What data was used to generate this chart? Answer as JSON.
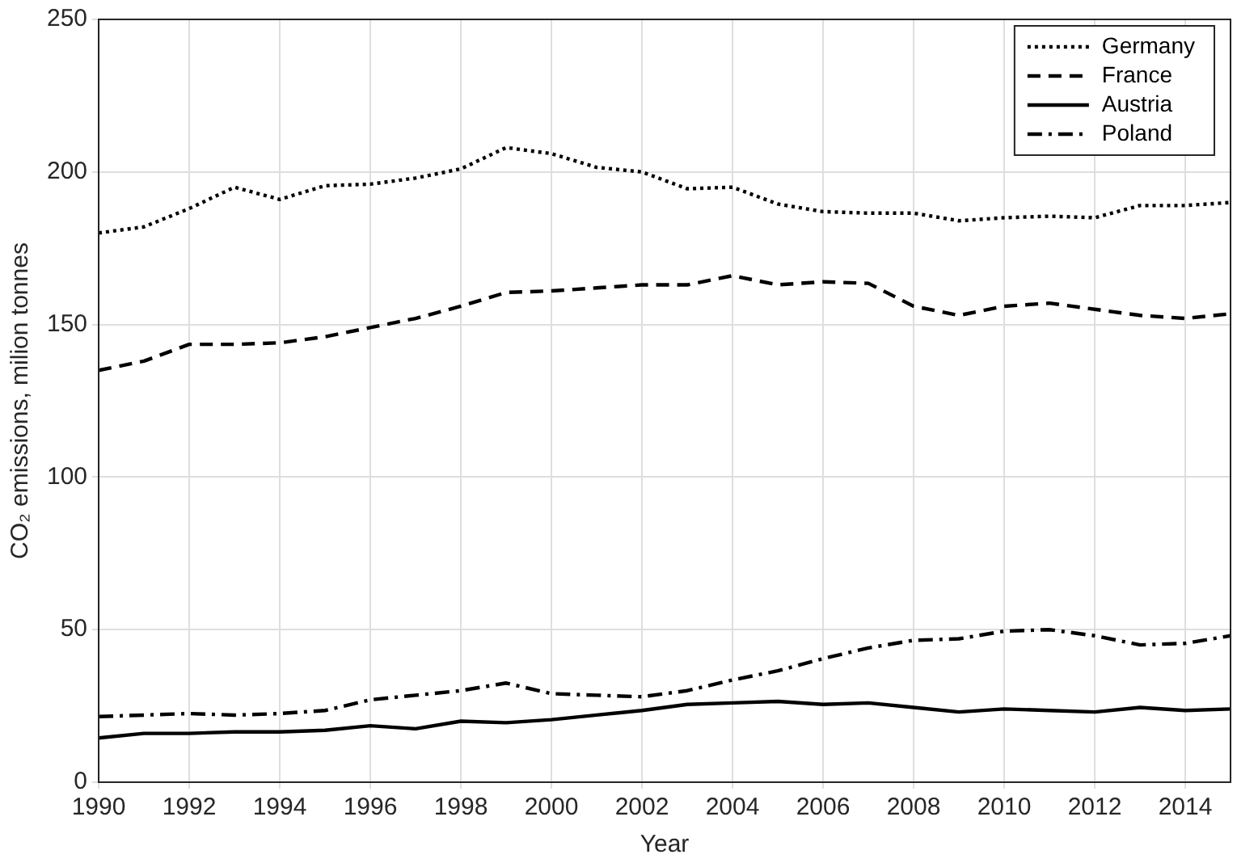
{
  "chart_data": {
    "type": "line",
    "xlabel": "Year",
    "ylabel": "CO₂ emissions, milion tonnes",
    "x": [
      1990,
      1991,
      1992,
      1993,
      1994,
      1995,
      1996,
      1997,
      1998,
      1999,
      2000,
      2001,
      2002,
      2003,
      2004,
      2005,
      2006,
      2007,
      2008,
      2009,
      2010,
      2011,
      2012,
      2013,
      2014,
      2015
    ],
    "series": [
      {
        "name": "Germany",
        "color": "#000000",
        "line_style": "dotted",
        "values": [
          180,
          182,
          188,
          195,
          191,
          195.5,
          196,
          198,
          201,
          208,
          206,
          201.5,
          200,
          194.5,
          195,
          189.5,
          187,
          186.5,
          186.5,
          184,
          185,
          185.5,
          185,
          189,
          189,
          190
        ]
      },
      {
        "name": "France",
        "color": "#000000",
        "line_style": "dashed",
        "values": [
          135,
          138,
          143.5,
          143.5,
          144,
          146,
          149,
          152,
          156,
          160.5,
          161,
          162,
          163,
          163,
          166,
          163,
          164,
          163.5,
          156,
          153,
          156,
          157,
          155,
          153,
          152,
          153.5
        ]
      },
      {
        "name": "Austria",
        "color": "#000000",
        "line_style": "solid",
        "values": [
          14.5,
          16,
          16,
          16.5,
          16.5,
          17,
          18.5,
          17.5,
          20,
          19.5,
          20.5,
          22,
          23.5,
          25.5,
          26,
          26.5,
          25.5,
          26,
          24.5,
          23,
          24,
          23.5,
          23,
          24.5,
          23.5,
          24
        ]
      },
      {
        "name": "Poland",
        "color": "#000000",
        "line_style": "dashdot",
        "values": [
          21.5,
          22,
          22.5,
          22,
          22.5,
          23.5,
          27,
          28.5,
          30,
          32.5,
          29,
          28.5,
          28,
          30,
          33.5,
          36.5,
          40.5,
          44,
          46.5,
          47,
          49.5,
          50,
          48,
          45,
          45.5,
          48
        ]
      }
    ],
    "xlim": [
      1990,
      2015
    ],
    "xticks": [
      1990,
      1992,
      1994,
      1996,
      1998,
      2000,
      2002,
      2004,
      2006,
      2008,
      2010,
      2012,
      2014
    ],
    "ylim": [
      0,
      250
    ],
    "yticks": [
      0,
      50,
      100,
      150,
      200,
      250
    ],
    "grid": true,
    "legend": "top right",
    "marker": "none"
  }
}
